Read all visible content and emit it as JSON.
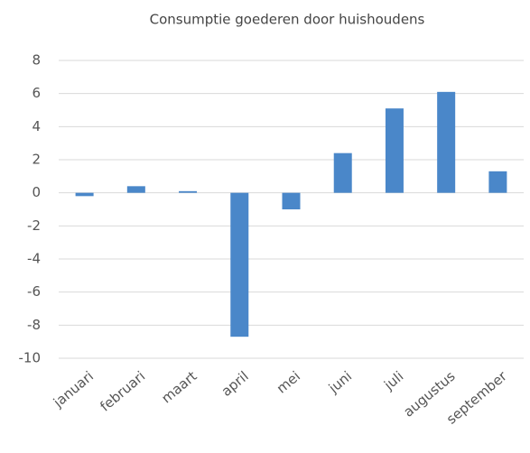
{
  "chart_data": {
    "type": "bar",
    "title": "Consumptie goederen door huishoudens",
    "categories": [
      "januari",
      "februari",
      "maart",
      "april",
      "mei",
      "juni",
      "juli",
      "augustus",
      "september"
    ],
    "values": [
      -0.2,
      0.4,
      0.1,
      -8.7,
      -1.0,
      2.4,
      5.1,
      6.1,
      1.3
    ],
    "color": "#4a87c9",
    "ylim": [
      -10,
      8
    ],
    "yticks": [
      -10,
      -8,
      -6,
      -4,
      -2,
      0,
      2,
      4,
      6,
      8
    ],
    "grid": true
  }
}
